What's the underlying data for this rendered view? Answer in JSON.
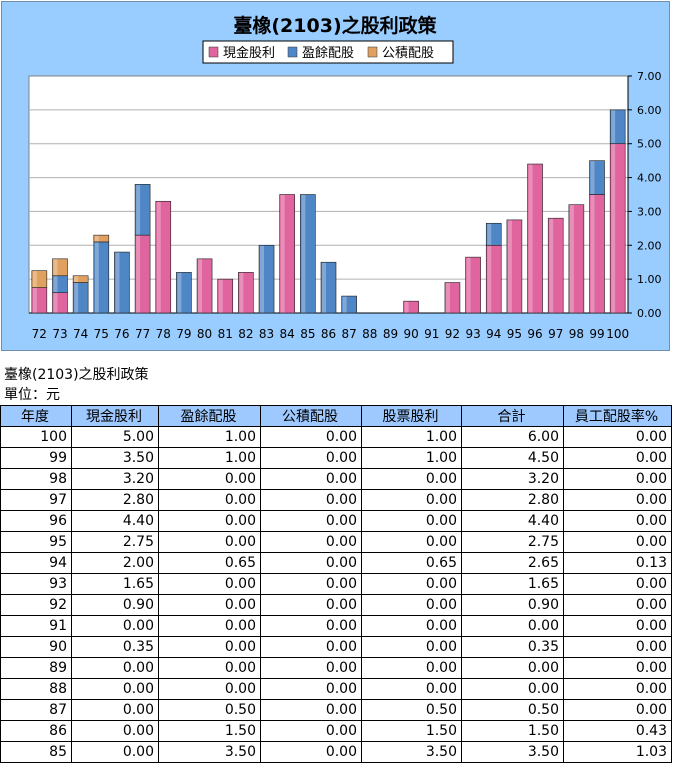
{
  "caption_title": "臺橡(2103)之股利政策",
  "caption_unit": "單位：元",
  "table": {
    "headers": [
      "年度",
      "現金股利",
      "盈餘配股",
      "公積配股",
      "股票股利",
      "合計",
      "員工配股率%"
    ],
    "rows": [
      [
        "100",
        "5.00",
        "1.00",
        "0.00",
        "1.00",
        "6.00",
        "0.00"
      ],
      [
        "99",
        "3.50",
        "1.00",
        "0.00",
        "1.00",
        "4.50",
        "0.00"
      ],
      [
        "98",
        "3.20",
        "0.00",
        "0.00",
        "0.00",
        "3.20",
        "0.00"
      ],
      [
        "97",
        "2.80",
        "0.00",
        "0.00",
        "0.00",
        "2.80",
        "0.00"
      ],
      [
        "96",
        "4.40",
        "0.00",
        "0.00",
        "0.00",
        "4.40",
        "0.00"
      ],
      [
        "95",
        "2.75",
        "0.00",
        "0.00",
        "0.00",
        "2.75",
        "0.00"
      ],
      [
        "94",
        "2.00",
        "0.65",
        "0.00",
        "0.65",
        "2.65",
        "0.13"
      ],
      [
        "93",
        "1.65",
        "0.00",
        "0.00",
        "0.00",
        "1.65",
        "0.00"
      ],
      [
        "92",
        "0.90",
        "0.00",
        "0.00",
        "0.00",
        "0.90",
        "0.00"
      ],
      [
        "91",
        "0.00",
        "0.00",
        "0.00",
        "0.00",
        "0.00",
        "0.00"
      ],
      [
        "90",
        "0.35",
        "0.00",
        "0.00",
        "0.00",
        "0.35",
        "0.00"
      ],
      [
        "89",
        "0.00",
        "0.00",
        "0.00",
        "0.00",
        "0.00",
        "0.00"
      ],
      [
        "88",
        "0.00",
        "0.00",
        "0.00",
        "0.00",
        "0.00",
        "0.00"
      ],
      [
        "87",
        "0.00",
        "0.50",
        "0.00",
        "0.50",
        "0.50",
        "0.00"
      ],
      [
        "86",
        "0.00",
        "1.50",
        "0.00",
        "1.50",
        "1.50",
        "0.43"
      ],
      [
        "85",
        "0.00",
        "3.50",
        "0.00",
        "3.50",
        "3.50",
        "1.03"
      ]
    ]
  },
  "chart_data": {
    "type": "bar",
    "stacked": true,
    "title": "臺橡(2103)之股利政策",
    "legend_position": "top",
    "grid": true,
    "ylim": [
      0,
      7
    ],
    "yticks": [
      "0.00",
      "1.00",
      "2.00",
      "3.00",
      "4.00",
      "5.00",
      "6.00",
      "7.00"
    ],
    "categories": [
      "72",
      "73",
      "74",
      "75",
      "76",
      "77",
      "78",
      "79",
      "80",
      "81",
      "82",
      "83",
      "84",
      "85",
      "86",
      "87",
      "88",
      "89",
      "90",
      "91",
      "92",
      "93",
      "94",
      "95",
      "96",
      "97",
      "98",
      "99",
      "100"
    ],
    "series": [
      {
        "name": "現金股利",
        "color": "#e0649e",
        "values": [
          0.75,
          0.6,
          0,
          0,
          0,
          2.3,
          3.3,
          0,
          1.6,
          1.0,
          1.2,
          0,
          3.5,
          0,
          0,
          0,
          0,
          0,
          0.35,
          0,
          0.9,
          1.65,
          2.0,
          2.75,
          4.4,
          2.8,
          3.2,
          3.5,
          5.0
        ]
      },
      {
        "name": "盈餘配股",
        "color": "#4f86c6",
        "values": [
          0,
          0.5,
          0.9,
          2.1,
          1.8,
          1.5,
          0,
          1.2,
          0,
          0,
          0,
          2.0,
          0,
          3.5,
          1.5,
          0.5,
          0,
          0,
          0,
          0,
          0,
          0,
          0.65,
          0,
          0,
          0,
          0,
          1.0,
          1.0
        ]
      },
      {
        "name": "公積配股",
        "color": "#e0a060",
        "values": [
          0.5,
          0.5,
          0.2,
          0.2,
          0,
          0,
          0,
          0,
          0,
          0,
          0,
          0,
          0,
          0,
          0,
          0,
          0,
          0,
          0,
          0,
          0,
          0,
          0,
          0,
          0,
          0,
          0,
          0,
          0
        ]
      }
    ]
  }
}
